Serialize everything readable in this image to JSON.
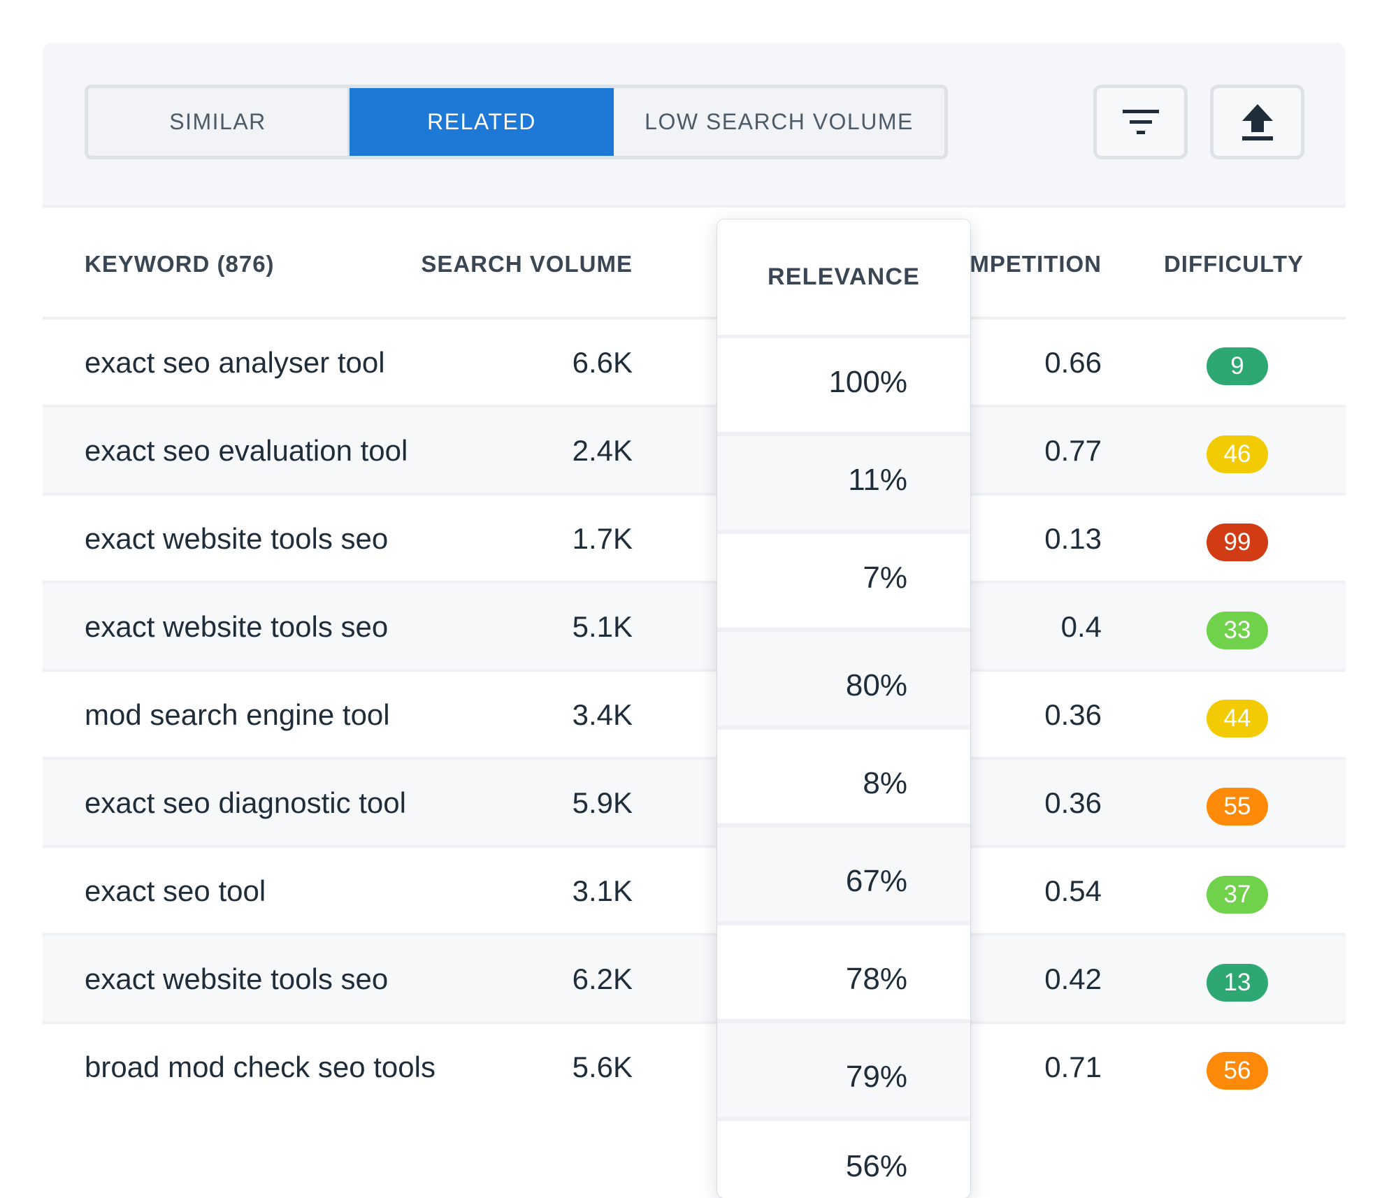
{
  "tabs": [
    {
      "label": "SIMILAR",
      "active": false
    },
    {
      "label": "RELATED",
      "active": true
    },
    {
      "label": "LOW SEARCH VOLUME",
      "active": false
    }
  ],
  "toolbar": {
    "filter_icon": "filter-icon",
    "export_icon": "upload-icon"
  },
  "table": {
    "headers": {
      "keyword": "KEYWORD (876)",
      "search_volume": "SEARCH VOLUME",
      "relevance": "RELEVANCE",
      "competition": "COMPETITION",
      "difficulty": "DIFFICULTY"
    },
    "rows": [
      {
        "keyword": "exact seo analyser tool",
        "volume": "6.6K",
        "relevance": "100%",
        "competition": "0.66",
        "difficulty": "9",
        "color": "#2ea872"
      },
      {
        "keyword": "exact seo evaluation tool",
        "volume": "2.4K",
        "relevance": "11%",
        "competition": "0.77",
        "difficulty": "46",
        "color": "#f2cb05"
      },
      {
        "keyword": "exact website tools seo",
        "volume": "1.7K",
        "relevance": "7%",
        "competition": "0.13",
        "difficulty": "99",
        "color": "#d23c14"
      },
      {
        "keyword": "exact website tools seo",
        "volume": "5.1K",
        "relevance": "80%",
        "competition": "0.4",
        "difficulty": "33",
        "color": "#6fd24a"
      },
      {
        "keyword": "mod search engine tool",
        "volume": "3.4K",
        "relevance": "8%",
        "competition": "0.36",
        "difficulty": "44",
        "color": "#f2cb05"
      },
      {
        "keyword": "exact seo diagnostic tool",
        "volume": "5.9K",
        "relevance": "67%",
        "competition": "0.36",
        "difficulty": "55",
        "color": "#ff8a0a"
      },
      {
        "keyword": "exact seo tool",
        "volume": "3.1K",
        "relevance": "78%",
        "competition": "0.54",
        "difficulty": "37",
        "color": "#6fd24a"
      },
      {
        "keyword": "exact website tools seo",
        "volume": "6.2K",
        "relevance": "79%",
        "competition": "0.42",
        "difficulty": "13",
        "color": "#2ea872"
      },
      {
        "keyword": "broad mod check seo tools",
        "volume": "5.6K",
        "relevance": "56%",
        "competition": "0.71",
        "difficulty": "56",
        "color": "#ff8a0a"
      }
    ]
  }
}
